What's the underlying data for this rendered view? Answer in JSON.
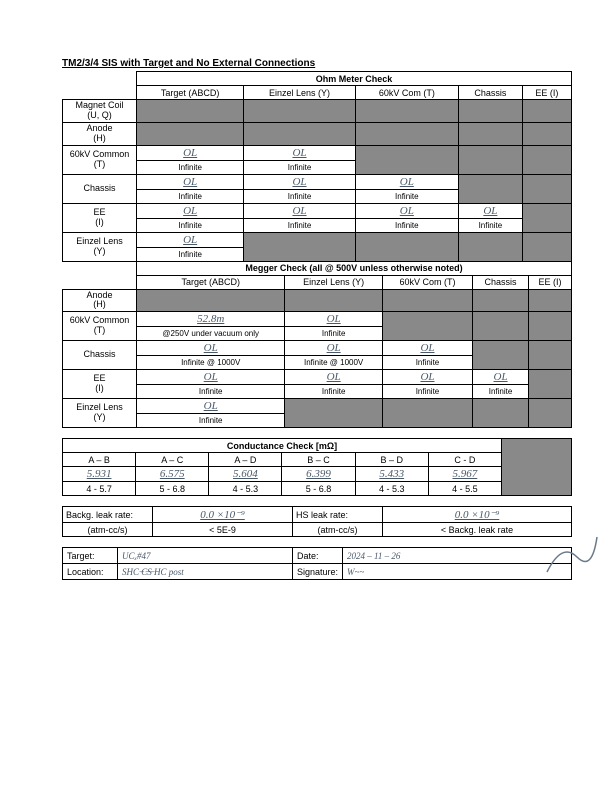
{
  "title": "TM2/3/4 SIS with Target and No External Connections",
  "ohm": {
    "header": "Ohm Meter Check",
    "cols": [
      "Target (ABCD)",
      "Einzel Lens (Y)",
      "60kV Com (T)",
      "Chassis",
      "EE (I)"
    ],
    "rows": [
      {
        "label1": "Magnet Coil",
        "label2": "(U, Q)",
        "cells": [
          "shade",
          "shade",
          "shade",
          "shade",
          "shade"
        ]
      },
      {
        "label1": "Anode",
        "label2": "(H)",
        "cells": [
          "shade",
          "shade",
          "shade",
          "shade",
          "shade"
        ]
      },
      {
        "label1": "60kV Common",
        "label2": "(T)",
        "cells": [
          {
            "hw": "OL",
            "sub": "Infinite"
          },
          {
            "hw": "OL",
            "sub": "Infinite"
          },
          "shade",
          "shade",
          "shade"
        ]
      },
      {
        "label1": "Chassis",
        "label2": "",
        "cells": [
          {
            "hw": "OL",
            "sub": "Infinite"
          },
          {
            "hw": "OL",
            "sub": "Infinite"
          },
          {
            "hw": "OL",
            "sub": "Infinite"
          },
          "shade",
          "shade"
        ]
      },
      {
        "label1": "EE",
        "label2": "(I)",
        "cells": [
          {
            "hw": "OL",
            "sub": "Infinite"
          },
          {
            "hw": "OL",
            "sub": "Infinite"
          },
          {
            "hw": "OL",
            "sub": "Infinite"
          },
          {
            "hw": "OL",
            "sub": "Infinite"
          },
          "shade"
        ]
      },
      {
        "label1": "Einzel Lens",
        "label2": "(Y)",
        "cells": [
          {
            "hw": "OL",
            "sub": "Infinite"
          },
          "shade",
          "shade",
          "shade",
          "shade"
        ]
      }
    ]
  },
  "megger": {
    "header": "Megger Check (all @ 500V unless otherwise noted)",
    "cols": [
      "Target (ABCD)",
      "Einzel Lens (Y)",
      "60kV Com (T)",
      "Chassis",
      "EE (I)"
    ],
    "rows": [
      {
        "label1": "Anode",
        "label2": "(H)",
        "cells": [
          "shade",
          "shade",
          "shade",
          "shade",
          "shade"
        ]
      },
      {
        "label1": "60kV Common",
        "label2": "(T)",
        "cells": [
          {
            "hw": "52.8m",
            "sub": "@250V under vacuum only"
          },
          {
            "hw": "OL",
            "sub": "Infinite"
          },
          "shade",
          "shade",
          "shade"
        ]
      },
      {
        "label1": "Chassis",
        "label2": "",
        "cells": [
          {
            "hw": "OL",
            "sub": "Infinite @ 1000V"
          },
          {
            "hw": "OL",
            "sub": "Infinite @ 1000V"
          },
          {
            "hw": "OL",
            "sub": "Infinite"
          },
          "shade",
          "shade"
        ]
      },
      {
        "label1": "EE",
        "label2": "(I)",
        "cells": [
          {
            "hw": "OL",
            "sub": "Infinite"
          },
          {
            "hw": "OL",
            "sub": "Infinite"
          },
          {
            "hw": "OL",
            "sub": "Infinite"
          },
          {
            "hw": "OL",
            "sub": "Infinite"
          },
          "shade"
        ]
      },
      {
        "label1": "Einzel Lens",
        "label2": "(Y)",
        "cells": [
          {
            "hw": "OL",
            "sub": "Infinite"
          },
          "shade",
          "shade",
          "shade",
          "shade"
        ]
      }
    ]
  },
  "cond": {
    "header": "Conductance Check [mΩ]",
    "cols": [
      "A – B",
      "A – C",
      "A – D",
      "B – C",
      "B – D",
      "C - D"
    ],
    "hw": [
      "5.931",
      "6.575",
      "5.604",
      "6.399",
      "5.433",
      "5.967"
    ],
    "ranges": [
      "4 - 5.7",
      "5 - 6.8",
      "4 - 5.3",
      "5 - 6.8",
      "4 - 5.3",
      "4 - 5.5"
    ]
  },
  "leak": {
    "l1": "Backg. leak rate:",
    "l1hw": "0.0 ×10⁻⁹",
    "l2": "HS leak rate:",
    "l2hw": "0.0 ×10⁻⁹",
    "u1": "(atm-cc/s)",
    "u1v": "< 5E-9",
    "u2": "(atm-cc/s)",
    "u2v": "< Backg. leak rate"
  },
  "footer": {
    "target_l": "Target:",
    "target_v": "UCₓ#47",
    "date_l": "Date:",
    "date_v": "2024 – 11 – 26",
    "loc_l": "Location:",
    "loc_v": "SHC  ̶C̶S̶  HC post",
    "sig_l": "Signature:",
    "sig_v": "W~~"
  }
}
